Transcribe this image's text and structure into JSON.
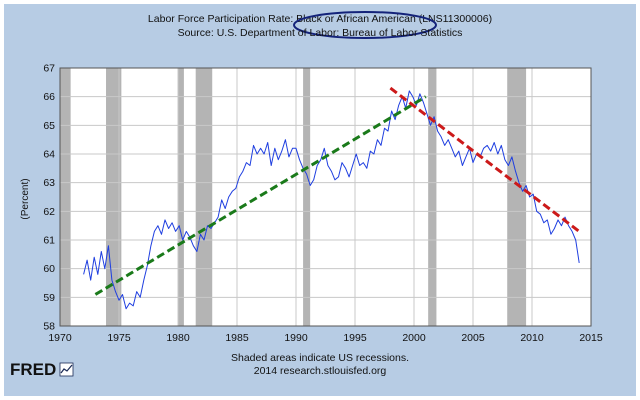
{
  "chart_data": {
    "type": "line",
    "title": "Labor Force Participation Rate: Black or African American (LNS11300006)",
    "subtitle": "Source: U.S. Department of Labor: Bureau of Labor Statistics",
    "ylabel": "(Percent)",
    "xlabel": "",
    "xlim": [
      1970,
      2015
    ],
    "ylim": [
      58,
      67
    ],
    "x_ticks": [
      "1970",
      "1975",
      "1980",
      "1985",
      "1990",
      "1995",
      "2000",
      "2005",
      "2010",
      "2015"
    ],
    "y_ticks": [
      "58",
      "59",
      "60",
      "61",
      "62",
      "63",
      "64",
      "65",
      "66",
      "67"
    ],
    "grid": true,
    "note": "Shaded areas indicate US recessions.",
    "credit": "2014 research.stlouisfed.org",
    "recessions": [
      [
        1969.9,
        1970.9
      ],
      [
        1973.9,
        1975.2
      ],
      [
        1980.0,
        1980.5
      ],
      [
        1981.5,
        1982.9
      ],
      [
        1990.6,
        1991.2
      ],
      [
        2001.2,
        2001.9
      ],
      [
        2007.9,
        2009.5
      ]
    ],
    "series": [
      {
        "name": "",
        "color": "#1f3fe0",
        "x": [
          1972.0,
          1972.3,
          1972.6,
          1972.9,
          1973.2,
          1973.5,
          1973.8,
          1974.1,
          1974.4,
          1974.7,
          1975.0,
          1975.3,
          1975.6,
          1975.9,
          1976.2,
          1976.5,
          1976.8,
          1977.1,
          1977.4,
          1977.7,
          1978.0,
          1978.3,
          1978.6,
          1978.9,
          1979.2,
          1979.5,
          1979.8,
          1980.1,
          1980.4,
          1980.7,
          1981.0,
          1981.3,
          1981.6,
          1981.9,
          1982.2,
          1982.5,
          1982.8,
          1983.1,
          1983.4,
          1983.7,
          1984.0,
          1984.3,
          1984.6,
          1984.9,
          1985.2,
          1985.5,
          1985.8,
          1986.1,
          1986.4,
          1986.7,
          1987.0,
          1987.3,
          1987.6,
          1987.9,
          1988.2,
          1988.5,
          1988.8,
          1989.1,
          1989.4,
          1989.7,
          1990.0,
          1990.3,
          1990.6,
          1990.9,
          1991.2,
          1991.5,
          1991.8,
          1992.1,
          1992.4,
          1992.7,
          1993.0,
          1993.3,
          1993.6,
          1993.9,
          1994.2,
          1994.5,
          1994.8,
          1995.1,
          1995.4,
          1995.7,
          1996.0,
          1996.3,
          1996.6,
          1996.9,
          1997.2,
          1997.5,
          1997.8,
          1998.1,
          1998.4,
          1998.7,
          1999.0,
          1999.3,
          1999.6,
          1999.9,
          2000.2,
          2000.5,
          2000.8,
          2001.1,
          2001.4,
          2001.7,
          2002.0,
          2002.3,
          2002.6,
          2002.9,
          2003.2,
          2003.5,
          2003.8,
          2004.1,
          2004.4,
          2004.7,
          2005.0,
          2005.3,
          2005.6,
          2005.9,
          2006.2,
          2006.5,
          2006.8,
          2007.1,
          2007.4,
          2007.7,
          2008.0,
          2008.3,
          2008.6,
          2008.9,
          2009.2,
          2009.5,
          2009.8,
          2010.1,
          2010.4,
          2010.7,
          2011.0,
          2011.3,
          2011.6,
          2011.9,
          2012.2,
          2012.5,
          2012.8,
          2013.1,
          2013.4,
          2013.7,
          2014.0
        ],
        "values": [
          59.8,
          60.3,
          59.6,
          60.4,
          59.8,
          60.6,
          60.0,
          60.8,
          59.6,
          59.2,
          58.9,
          59.1,
          58.6,
          58.8,
          58.7,
          59.2,
          59.0,
          59.6,
          60.1,
          60.8,
          61.3,
          61.5,
          61.2,
          61.7,
          61.4,
          61.6,
          61.3,
          61.5,
          61.0,
          61.3,
          61.1,
          60.8,
          60.6,
          61.2,
          61.0,
          61.5,
          61.4,
          61.6,
          61.8,
          62.4,
          62.1,
          62.5,
          62.7,
          62.8,
          63.2,
          63.4,
          63.7,
          63.6,
          64.3,
          64.0,
          64.2,
          64.0,
          64.4,
          63.6,
          64.2,
          63.8,
          64.1,
          64.5,
          63.9,
          64.2,
          64.2,
          63.8,
          63.5,
          63.3,
          62.9,
          63.1,
          63.6,
          63.8,
          64.2,
          63.6,
          63.4,
          63.1,
          63.2,
          63.7,
          63.5,
          63.2,
          63.6,
          64.0,
          63.6,
          63.7,
          63.5,
          64.1,
          64.0,
          64.5,
          64.3,
          64.9,
          64.8,
          65.5,
          65.2,
          65.7,
          66.0,
          65.6,
          66.2,
          66.0,
          65.7,
          66.1,
          65.8,
          65.4,
          65.0,
          65.3,
          64.8,
          64.6,
          64.3,
          64.5,
          64.2,
          63.9,
          64.1,
          63.6,
          63.9,
          64.2,
          63.7,
          64.0,
          63.9,
          64.2,
          64.3,
          64.1,
          64.4,
          64.0,
          64.3,
          63.8,
          63.6,
          63.9,
          63.4,
          63.0,
          62.7,
          62.9,
          62.5,
          62.6,
          62.0,
          61.9,
          61.6,
          61.7,
          61.2,
          61.4,
          61.7,
          61.5,
          61.8,
          61.5,
          61.3,
          61.0,
          60.2
        ]
      }
    ],
    "trend_lines": [
      {
        "color": "#1a7a1a",
        "x": [
          1973.0,
          2001.0
        ],
        "y": [
          59.1,
          66.0
        ]
      },
      {
        "color": "#cc1a1a",
        "x": [
          1998.0,
          2014.0
        ],
        "y": [
          66.3,
          61.3
        ]
      }
    ],
    "highlight_label": "Black or African American"
  },
  "logo": {
    "text": "FRED"
  },
  "colors": {
    "outer_panel": "#b7cce4",
    "plot_bg": "#ffffff",
    "grid": "#c8c8c8",
    "recession": "#b4b4b4",
    "ellipse": "#14237a"
  }
}
